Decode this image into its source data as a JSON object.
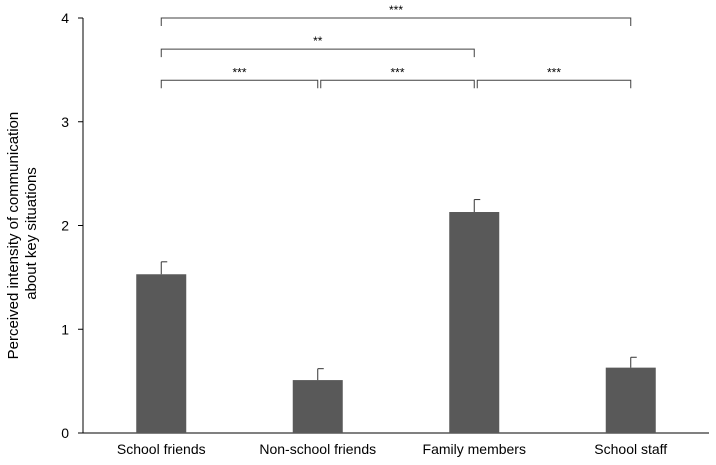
{
  "chart_data": {
    "type": "bar",
    "categories": [
      "School friends",
      "Non-school friends",
      "Family members",
      "School staff"
    ],
    "values": [
      1.53,
      0.51,
      2.13,
      0.63
    ],
    "errors": [
      0.12,
      0.11,
      0.12,
      0.1
    ],
    "ylabel_lines": [
      "Perceived intensity of communication",
      "about key situations"
    ],
    "xlabel": "",
    "ylim": [
      0,
      4
    ],
    "yticks": [
      0,
      1,
      2,
      3,
      4
    ],
    "bar_color": "#595959",
    "grid": false,
    "significance": [
      {
        "from": 0,
        "to": 3,
        "label": "***",
        "level": 4
      },
      {
        "from": 0,
        "to": 2,
        "label": "**",
        "level": 3.7
      },
      {
        "from": 0,
        "to": 1,
        "label": "***",
        "level": 3.4
      },
      {
        "from": 1,
        "to": 2,
        "label": "***",
        "level": 3.4
      },
      {
        "from": 2,
        "to": 3,
        "label": "***",
        "level": 3.4
      }
    ]
  }
}
